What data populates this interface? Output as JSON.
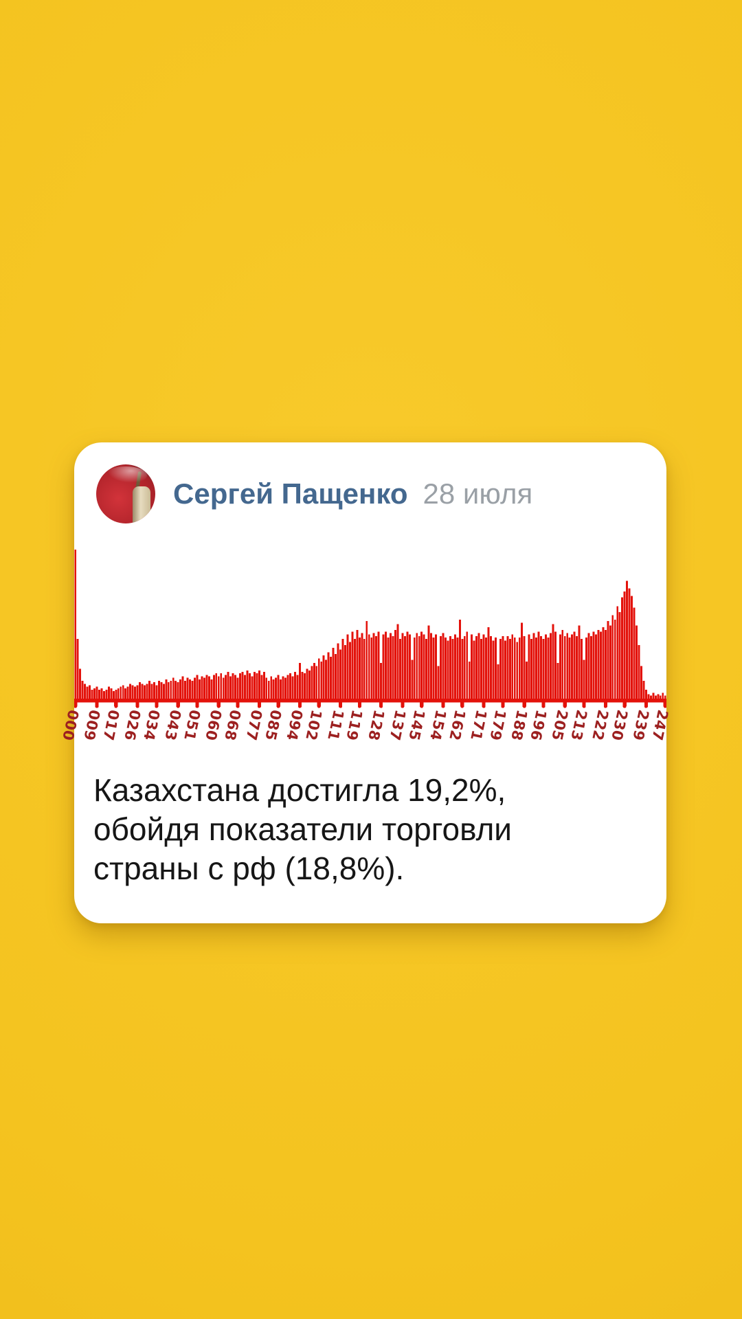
{
  "post": {
    "author": "Сергей Пащенко",
    "date": "28 июля",
    "text_lines": [
      "Казахстана достигла 19,2%,",
      "обойдя показатели торговли",
      "страны с рф (18,8%)."
    ]
  },
  "colors": {
    "background_yellow": "#f4c31f",
    "card_white": "#ffffff",
    "author_blue": "#44688f",
    "date_gray": "#9aa0a6",
    "text_black": "#161616",
    "bar_red": "#e3120b",
    "tick_label_red": "#9c2020"
  },
  "chart_data": {
    "type": "bar",
    "title": "",
    "xlabel": "",
    "ylabel": "",
    "grid": false,
    "legend": false,
    "ylim": [
      0,
      100
    ],
    "x_range": [
      0,
      247
    ],
    "x_tick_labels": [
      "000",
      "009",
      "017",
      "026",
      "034",
      "043",
      "051",
      "060",
      "068",
      "077",
      "085",
      "094",
      "102",
      "111",
      "119",
      "128",
      "137",
      "145",
      "154",
      "162",
      "171",
      "179",
      "188",
      "196",
      "205",
      "213",
      "222",
      "230",
      "239",
      "247"
    ],
    "values": [
      100,
      40,
      20,
      12,
      10,
      8,
      9,
      6,
      7,
      8,
      6,
      7,
      5,
      6,
      8,
      7,
      5,
      6,
      7,
      8,
      9,
      7,
      8,
      10,
      9,
      8,
      9,
      11,
      10,
      9,
      10,
      12,
      10,
      11,
      9,
      12,
      11,
      10,
      13,
      11,
      12,
      14,
      12,
      11,
      13,
      15,
      12,
      14,
      13,
      12,
      14,
      16,
      13,
      15,
      14,
      16,
      15,
      13,
      16,
      17,
      15,
      17,
      14,
      16,
      18,
      15,
      17,
      16,
      14,
      17,
      18,
      16,
      19,
      17,
      15,
      18,
      17,
      19,
      16,
      18,
      14,
      12,
      15,
      13,
      14,
      16,
      13,
      15,
      14,
      16,
      17,
      15,
      18,
      16,
      24,
      18,
      17,
      20,
      19,
      22,
      24,
      22,
      27,
      25,
      29,
      26,
      31,
      28,
      34,
      30,
      37,
      33,
      40,
      36,
      43,
      38,
      45,
      40,
      46,
      41,
      44,
      40,
      52,
      43,
      41,
      44,
      42,
      45,
      24,
      43,
      45,
      41,
      44,
      42,
      46,
      50,
      40,
      44,
      42,
      45,
      43,
      26,
      41,
      44,
      42,
      45,
      43,
      40,
      49,
      44,
      41,
      43,
      22,
      42,
      44,
      41,
      39,
      42,
      40,
      43,
      41,
      53,
      40,
      42,
      45,
      25,
      43,
      39,
      42,
      44,
      40,
      43,
      41,
      48,
      42,
      39,
      41,
      23,
      40,
      42,
      39,
      42,
      40,
      43,
      41,
      38,
      41,
      51,
      42,
      25,
      43,
      40,
      44,
      41,
      45,
      42,
      40,
      43,
      41,
      44,
      50,
      45,
      24,
      43,
      46,
      42,
      44,
      41,
      43,
      45,
      42,
      49,
      40,
      26,
      41,
      44,
      42,
      45,
      43,
      46,
      45,
      48,
      46,
      52,
      49,
      56,
      53,
      62,
      58,
      68,
      72,
      79,
      74,
      69,
      61,
      49,
      36,
      22,
      12,
      6,
      3,
      2,
      4,
      2,
      3,
      2,
      4,
      2
    ],
    "bar_color": "#e3120b",
    "tick_label_color": "#9c2020"
  }
}
